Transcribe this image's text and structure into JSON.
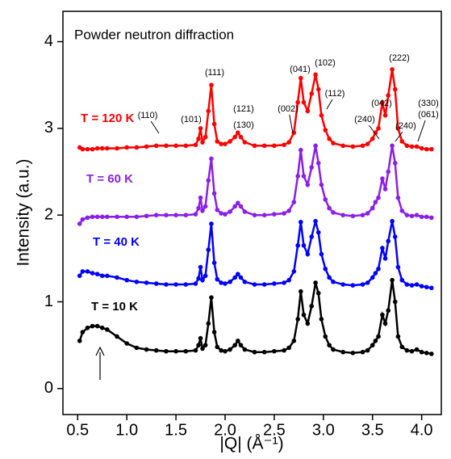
{
  "chart_data": {
    "type": "scatter",
    "title": "Powder neutron diffraction",
    "xlabel": "|Q| (Å⁻¹)",
    "ylabel": "Intensity (a.u.)",
    "xlim": [
      0.35,
      4.2
    ],
    "ylim": [
      -0.3,
      4.35
    ],
    "xticks": [
      0.5,
      {
        "value": 1,
        "label": "1.0"
      },
      1.5,
      {
        "value": 2,
        "label": "2.0"
      },
      2.5,
      {
        "value": 3,
        "label": "3.0"
      },
      3.5,
      {
        "value": 4,
        "label": "4.0"
      }
    ],
    "yticks": [
      0,
      1,
      2,
      3,
      4
    ],
    "x": [
      0.52,
      0.55,
      0.6,
      0.65,
      0.7,
      0.75,
      0.8,
      0.9,
      1.0,
      1.1,
      1.2,
      1.3,
      1.4,
      1.5,
      1.6,
      1.7,
      1.73,
      1.75,
      1.77,
      1.8,
      1.83,
      1.86,
      1.89,
      1.92,
      1.96,
      2.0,
      2.05,
      2.1,
      2.13,
      2.16,
      2.2,
      2.3,
      2.4,
      2.5,
      2.6,
      2.65,
      2.7,
      2.74,
      2.77,
      2.8,
      2.84,
      2.88,
      2.92,
      2.95,
      2.98,
      3.02,
      3.06,
      3.1,
      3.2,
      3.3,
      3.4,
      3.45,
      3.5,
      3.53,
      3.56,
      3.6,
      3.63,
      3.66,
      3.7,
      3.73,
      3.76,
      3.8,
      3.85,
      3.9,
      3.95,
      4.0,
      4.05,
      4.1
    ],
    "series": [
      {
        "name": "T = 120 K",
        "color": "#ff0000",
        "values": [
          2.78,
          2.76,
          2.76,
          2.76,
          2.77,
          2.77,
          2.77,
          2.77,
          2.78,
          2.78,
          2.79,
          2.8,
          2.8,
          2.8,
          2.8,
          2.81,
          2.88,
          3.0,
          2.84,
          2.9,
          3.2,
          3.5,
          3.05,
          2.85,
          2.82,
          2.82,
          2.85,
          2.9,
          2.95,
          2.9,
          2.84,
          2.8,
          2.8,
          2.8,
          2.81,
          2.84,
          2.95,
          3.3,
          3.58,
          3.3,
          3.2,
          3.4,
          3.62,
          3.45,
          3.15,
          2.98,
          2.88,
          2.83,
          2.8,
          2.79,
          2.8,
          2.82,
          2.88,
          2.95,
          3.0,
          3.3,
          3.15,
          3.38,
          3.68,
          3.45,
          3.0,
          2.85,
          2.8,
          2.79,
          2.79,
          2.77,
          2.76,
          2.76
        ]
      },
      {
        "name": "T = 60 K",
        "color": "#8a1fe6",
        "values": [
          1.9,
          1.95,
          1.97,
          1.98,
          1.98,
          1.98,
          1.98,
          1.98,
          1.98,
          1.98,
          1.99,
          2.0,
          2.0,
          2.0,
          2.0,
          2.01,
          2.08,
          2.2,
          2.05,
          2.1,
          2.4,
          2.65,
          2.25,
          2.06,
          2.02,
          2.01,
          2.04,
          2.1,
          2.14,
          2.1,
          2.04,
          2.0,
          2.0,
          2.01,
          2.02,
          2.05,
          2.15,
          2.45,
          2.75,
          2.45,
          2.35,
          2.55,
          2.8,
          2.6,
          2.35,
          2.18,
          2.08,
          2.03,
          2.0,
          1.99,
          2.0,
          2.02,
          2.08,
          2.15,
          2.2,
          2.42,
          2.3,
          2.5,
          2.8,
          2.6,
          2.2,
          2.05,
          2.0,
          1.99,
          2.0,
          1.98,
          1.98,
          1.97
        ]
      },
      {
        "name": "T = 40 K",
        "color": "#0000ff",
        "values": [
          1.3,
          1.35,
          1.35,
          1.33,
          1.32,
          1.3,
          1.3,
          1.28,
          1.25,
          1.23,
          1.22,
          1.21,
          1.2,
          1.2,
          1.2,
          1.21,
          1.27,
          1.4,
          1.25,
          1.3,
          1.6,
          1.9,
          1.45,
          1.26,
          1.22,
          1.21,
          1.23,
          1.28,
          1.32,
          1.28,
          1.23,
          1.2,
          1.2,
          1.21,
          1.22,
          1.25,
          1.35,
          1.65,
          1.92,
          1.65,
          1.55,
          1.75,
          1.93,
          1.8,
          1.55,
          1.38,
          1.28,
          1.23,
          1.2,
          1.19,
          1.2,
          1.22,
          1.28,
          1.33,
          1.38,
          1.62,
          1.5,
          1.7,
          1.93,
          1.75,
          1.4,
          1.25,
          1.2,
          1.19,
          1.2,
          1.18,
          1.17,
          1.16
        ]
      },
      {
        "name": "T = 10 K",
        "color": "#000000",
        "values": [
          0.55,
          0.65,
          0.7,
          0.72,
          0.72,
          0.7,
          0.68,
          0.6,
          0.52,
          0.47,
          0.45,
          0.44,
          0.43,
          0.43,
          0.43,
          0.44,
          0.5,
          0.58,
          0.46,
          0.5,
          0.75,
          1.05,
          0.65,
          0.48,
          0.44,
          0.43,
          0.45,
          0.5,
          0.55,
          0.5,
          0.45,
          0.42,
          0.42,
          0.43,
          0.44,
          0.47,
          0.55,
          0.8,
          1.12,
          0.85,
          0.75,
          0.95,
          1.22,
          1.1,
          0.8,
          0.6,
          0.5,
          0.45,
          0.42,
          0.41,
          0.42,
          0.44,
          0.5,
          0.55,
          0.6,
          0.85,
          0.75,
          0.9,
          1.25,
          1.0,
          0.6,
          0.48,
          0.44,
          0.43,
          0.45,
          0.42,
          0.41,
          0.4
        ]
      }
    ],
    "annotations": [
      "(110)",
      "(101)",
      "(111)",
      "(121)",
      "(130)",
      "(002)",
      "(041)",
      "(102)",
      "(112)",
      "(240)",
      "(240)",
      "(042)",
      "(222)",
      "(330)",
      "(061)"
    ]
  }
}
